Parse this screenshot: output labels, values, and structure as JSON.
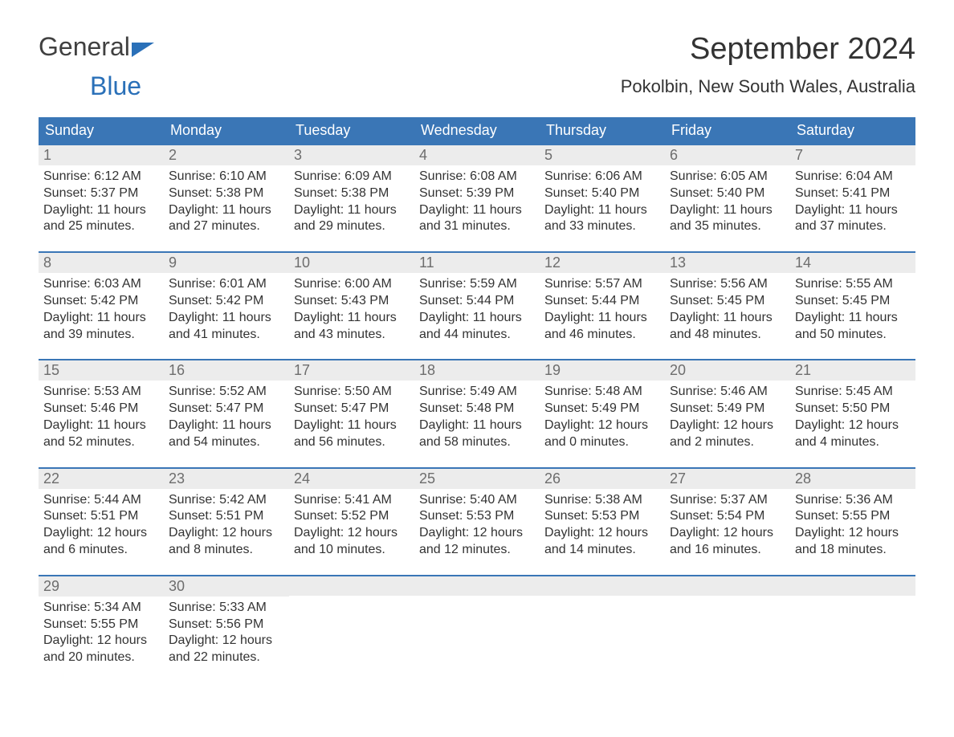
{
  "brand": {
    "word1": "General",
    "word2": "Blue"
  },
  "title": "September 2024",
  "location": "Pokolbin, New South Wales, Australia",
  "colors": {
    "header_bg": "#3a76b6",
    "header_text": "#ffffff",
    "daynum_bg": "#ececec",
    "daynum_text": "#6d6d6d",
    "body_text": "#333333",
    "accent": "#2a70b8",
    "page_bg": "#ffffff"
  },
  "weekdays": [
    "Sunday",
    "Monday",
    "Tuesday",
    "Wednesday",
    "Thursday",
    "Friday",
    "Saturday"
  ],
  "weeks": [
    [
      {
        "n": "1",
        "sr": "Sunrise: 6:12 AM",
        "ss": "Sunset: 5:37 PM",
        "d1": "Daylight: 11 hours",
        "d2": "and 25 minutes."
      },
      {
        "n": "2",
        "sr": "Sunrise: 6:10 AM",
        "ss": "Sunset: 5:38 PM",
        "d1": "Daylight: 11 hours",
        "d2": "and 27 minutes."
      },
      {
        "n": "3",
        "sr": "Sunrise: 6:09 AM",
        "ss": "Sunset: 5:38 PM",
        "d1": "Daylight: 11 hours",
        "d2": "and 29 minutes."
      },
      {
        "n": "4",
        "sr": "Sunrise: 6:08 AM",
        "ss": "Sunset: 5:39 PM",
        "d1": "Daylight: 11 hours",
        "d2": "and 31 minutes."
      },
      {
        "n": "5",
        "sr": "Sunrise: 6:06 AM",
        "ss": "Sunset: 5:40 PM",
        "d1": "Daylight: 11 hours",
        "d2": "and 33 minutes."
      },
      {
        "n": "6",
        "sr": "Sunrise: 6:05 AM",
        "ss": "Sunset: 5:40 PM",
        "d1": "Daylight: 11 hours",
        "d2": "and 35 minutes."
      },
      {
        "n": "7",
        "sr": "Sunrise: 6:04 AM",
        "ss": "Sunset: 5:41 PM",
        "d1": "Daylight: 11 hours",
        "d2": "and 37 minutes."
      }
    ],
    [
      {
        "n": "8",
        "sr": "Sunrise: 6:03 AM",
        "ss": "Sunset: 5:42 PM",
        "d1": "Daylight: 11 hours",
        "d2": "and 39 minutes."
      },
      {
        "n": "9",
        "sr": "Sunrise: 6:01 AM",
        "ss": "Sunset: 5:42 PM",
        "d1": "Daylight: 11 hours",
        "d2": "and 41 minutes."
      },
      {
        "n": "10",
        "sr": "Sunrise: 6:00 AM",
        "ss": "Sunset: 5:43 PM",
        "d1": "Daylight: 11 hours",
        "d2": "and 43 minutes."
      },
      {
        "n": "11",
        "sr": "Sunrise: 5:59 AM",
        "ss": "Sunset: 5:44 PM",
        "d1": "Daylight: 11 hours",
        "d2": "and 44 minutes."
      },
      {
        "n": "12",
        "sr": "Sunrise: 5:57 AM",
        "ss": "Sunset: 5:44 PM",
        "d1": "Daylight: 11 hours",
        "d2": "and 46 minutes."
      },
      {
        "n": "13",
        "sr": "Sunrise: 5:56 AM",
        "ss": "Sunset: 5:45 PM",
        "d1": "Daylight: 11 hours",
        "d2": "and 48 minutes."
      },
      {
        "n": "14",
        "sr": "Sunrise: 5:55 AM",
        "ss": "Sunset: 5:45 PM",
        "d1": "Daylight: 11 hours",
        "d2": "and 50 minutes."
      }
    ],
    [
      {
        "n": "15",
        "sr": "Sunrise: 5:53 AM",
        "ss": "Sunset: 5:46 PM",
        "d1": "Daylight: 11 hours",
        "d2": "and 52 minutes."
      },
      {
        "n": "16",
        "sr": "Sunrise: 5:52 AM",
        "ss": "Sunset: 5:47 PM",
        "d1": "Daylight: 11 hours",
        "d2": "and 54 minutes."
      },
      {
        "n": "17",
        "sr": "Sunrise: 5:50 AM",
        "ss": "Sunset: 5:47 PM",
        "d1": "Daylight: 11 hours",
        "d2": "and 56 minutes."
      },
      {
        "n": "18",
        "sr": "Sunrise: 5:49 AM",
        "ss": "Sunset: 5:48 PM",
        "d1": "Daylight: 11 hours",
        "d2": "and 58 minutes."
      },
      {
        "n": "19",
        "sr": "Sunrise: 5:48 AM",
        "ss": "Sunset: 5:49 PM",
        "d1": "Daylight: 12 hours",
        "d2": "and 0 minutes."
      },
      {
        "n": "20",
        "sr": "Sunrise: 5:46 AM",
        "ss": "Sunset: 5:49 PM",
        "d1": "Daylight: 12 hours",
        "d2": "and 2 minutes."
      },
      {
        "n": "21",
        "sr": "Sunrise: 5:45 AM",
        "ss": "Sunset: 5:50 PM",
        "d1": "Daylight: 12 hours",
        "d2": "and 4 minutes."
      }
    ],
    [
      {
        "n": "22",
        "sr": "Sunrise: 5:44 AM",
        "ss": "Sunset: 5:51 PM",
        "d1": "Daylight: 12 hours",
        "d2": "and 6 minutes."
      },
      {
        "n": "23",
        "sr": "Sunrise: 5:42 AM",
        "ss": "Sunset: 5:51 PM",
        "d1": "Daylight: 12 hours",
        "d2": "and 8 minutes."
      },
      {
        "n": "24",
        "sr": "Sunrise: 5:41 AM",
        "ss": "Sunset: 5:52 PM",
        "d1": "Daylight: 12 hours",
        "d2": "and 10 minutes."
      },
      {
        "n": "25",
        "sr": "Sunrise: 5:40 AM",
        "ss": "Sunset: 5:53 PM",
        "d1": "Daylight: 12 hours",
        "d2": "and 12 minutes."
      },
      {
        "n": "26",
        "sr": "Sunrise: 5:38 AM",
        "ss": "Sunset: 5:53 PM",
        "d1": "Daylight: 12 hours",
        "d2": "and 14 minutes."
      },
      {
        "n": "27",
        "sr": "Sunrise: 5:37 AM",
        "ss": "Sunset: 5:54 PM",
        "d1": "Daylight: 12 hours",
        "d2": "and 16 minutes."
      },
      {
        "n": "28",
        "sr": "Sunrise: 5:36 AM",
        "ss": "Sunset: 5:55 PM",
        "d1": "Daylight: 12 hours",
        "d2": "and 18 minutes."
      }
    ],
    [
      {
        "n": "29",
        "sr": "Sunrise: 5:34 AM",
        "ss": "Sunset: 5:55 PM",
        "d1": "Daylight: 12 hours",
        "d2": "and 20 minutes."
      },
      {
        "n": "30",
        "sr": "Sunrise: 5:33 AM",
        "ss": "Sunset: 5:56 PM",
        "d1": "Daylight: 12 hours",
        "d2": "and 22 minutes."
      },
      {
        "empty": true
      },
      {
        "empty": true
      },
      {
        "empty": true
      },
      {
        "empty": true
      },
      {
        "empty": true
      }
    ]
  ]
}
